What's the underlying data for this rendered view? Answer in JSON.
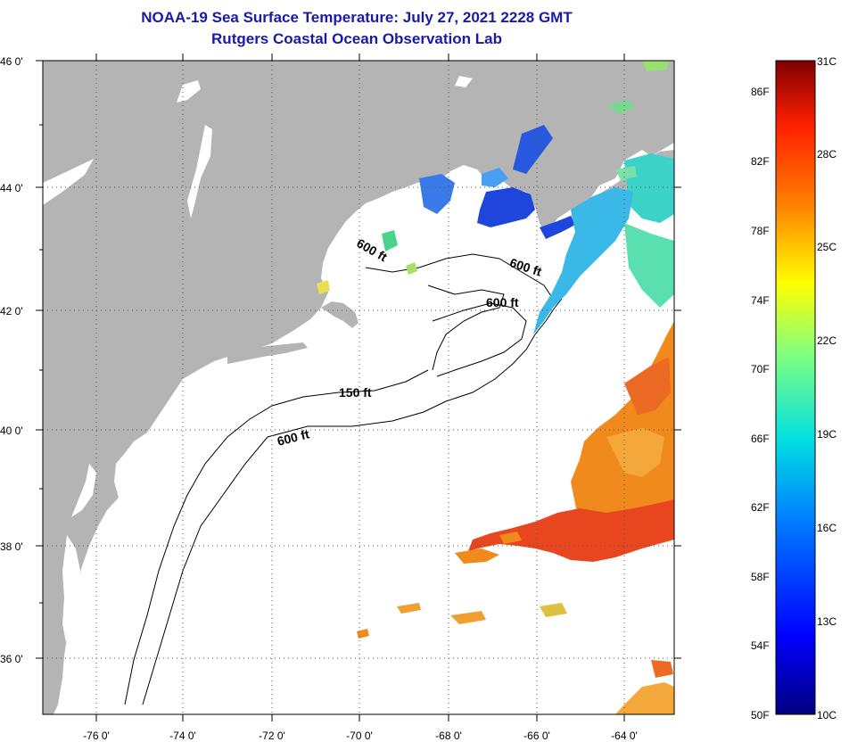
{
  "title": {
    "line1": "NOAA-19 Sea Surface Temperature:  July 27, 2021 2228 GMT",
    "line2": "Rutgers Coastal Ocean Observation Lab"
  },
  "axes": {
    "lat_labels": [
      "46 0'",
      "44 0'",
      "42 0'",
      "40 0'",
      "38 0'",
      "36 0'"
    ],
    "lon_labels": [
      "-76 0'",
      "-74 0'",
      "-72 0'",
      "-70 0'",
      "-68 0'",
      "-66 0'",
      "-64 0'"
    ]
  },
  "contours": {
    "ft600_a": "600 ft",
    "ft600_b": "600 ft",
    "ft600_c": "600 ft",
    "ft600_d": "600 ft",
    "ft150": "150 ft"
  },
  "colorbar": {
    "fahrenheit": [
      "86F",
      "82F",
      "78F",
      "74F",
      "70F",
      "66F",
      "62F",
      "58F",
      "54F",
      "50F"
    ],
    "celsius": [
      "31C",
      "28C",
      "25C",
      "22C",
      "19C",
      "16C",
      "13C",
      "10C"
    ]
  },
  "colors": {
    "land": "#b4b4b4",
    "title": "#1a1aa8",
    "warm": "#f08a1c",
    "hot": "#e8461e",
    "cool": "#3cd2c8",
    "cold": "#1e46dc"
  }
}
